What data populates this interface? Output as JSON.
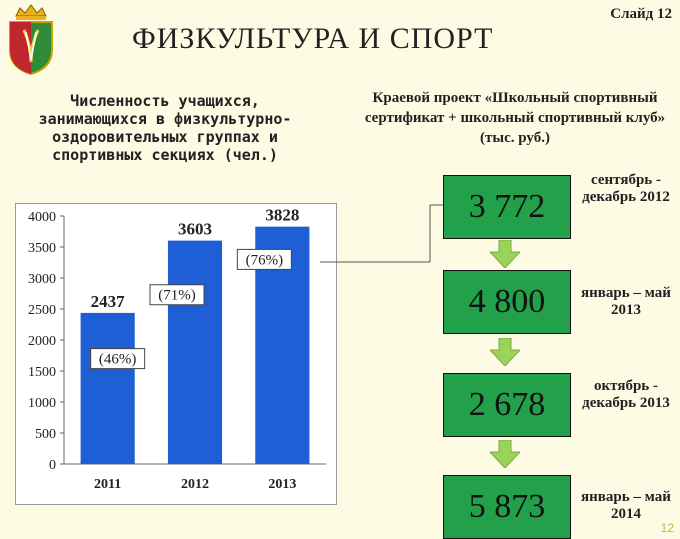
{
  "slide_label": "Слайд 12",
  "title": "ФИЗКУЛЬТУРА И СПОРТ",
  "left_caption": "Численность учащихся, занимающихся в физкультурно-оздоровительных группах и спортивных секциях (чел.)",
  "right_caption": "Краевой проект «Школьный спортивный сертификат + школьный спортивный клуб» (тыс. руб.)",
  "colors": {
    "bar": "#1f5fd6",
    "box": "#22a14a",
    "arrow": "#9bd35a",
    "background": "#fdfbe4"
  },
  "chart_data": {
    "type": "bar",
    "categories": [
      "2011",
      "2012",
      "2013"
    ],
    "values": [
      2437,
      3603,
      3828
    ],
    "value_labels": [
      "2437",
      "3603",
      "3828"
    ],
    "percent_labels": [
      "(46%)",
      "(71%)",
      "(76%)"
    ],
    "yticks": [
      "0",
      "500",
      "1000",
      "1500",
      "2000",
      "2500",
      "3000",
      "3500",
      "4000"
    ],
    "ylim": [
      0,
      4000
    ],
    "grid": false
  },
  "funding": [
    {
      "amount": "3 772",
      "period": "сентябрь - декабрь 2012"
    },
    {
      "amount": "4 800",
      "period": "январь – май 2013"
    },
    {
      "amount": "2 678",
      "period": "октябрь - декабрь 2013"
    },
    {
      "amount": "5 873",
      "period": "январь – май 2014"
    }
  ],
  "page_number": "12"
}
